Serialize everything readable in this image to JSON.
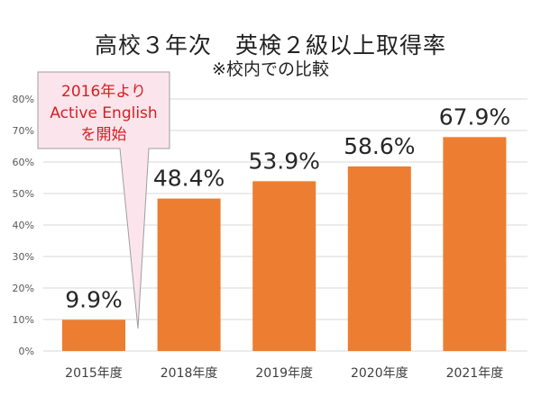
{
  "chart_data": {
    "type": "bar",
    "title": "高校３年次　英検２級以上取得率",
    "subtitle": "※校内での比較",
    "categories": [
      "2015年度",
      "2018年度",
      "2019年度",
      "2020年度",
      "2021年度"
    ],
    "values": [
      9.9,
      48.4,
      53.9,
      58.6,
      67.9
    ],
    "value_labels": [
      "9.9%",
      "48.4%",
      "53.9%",
      "58.6%",
      "67.9%"
    ],
    "y_ticks": [
      "0%",
      "10%",
      "20%",
      "30%",
      "40%",
      "50%",
      "60%",
      "70%",
      "80%"
    ],
    "ylim": [
      0,
      80
    ],
    "grid": true,
    "colors": {
      "bar": "#ED7D31",
      "grid": "#D9D9D9",
      "callout_fill": "#FCE4EC",
      "callout_stroke": "#9E9E9E",
      "callout_text": "#D42020"
    },
    "annotation": {
      "lines": [
        "2016年より",
        "Active English",
        "を開始"
      ],
      "points_to": "2015年度"
    }
  }
}
